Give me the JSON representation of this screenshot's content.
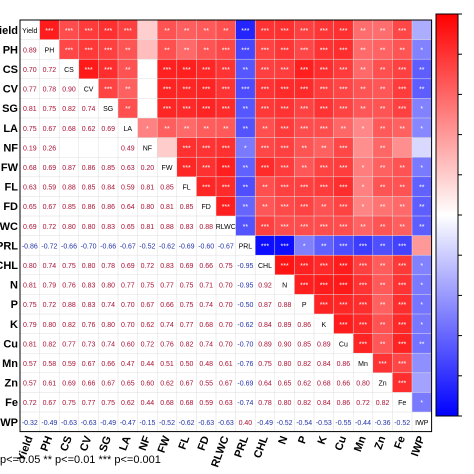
{
  "chart_data": {
    "type": "heatmap",
    "variables": [
      "Yield",
      "PH",
      "CS",
      "CV",
      "SG",
      "LA",
      "NF",
      "FW",
      "FL",
      "FD",
      "RLWC",
      "PRL",
      "CHL",
      "N",
      "P",
      "K",
      "Cu",
      "Mn",
      "Zn",
      "Fe",
      "IWP"
    ],
    "row_labels": [
      "Yield",
      "PH",
      "CS",
      "CV",
      "SG",
      "LA",
      "NF",
      "FW",
      "FL",
      "FD",
      "RLWC",
      "PRL",
      "CHL",
      "N",
      "P",
      "K",
      "Cu",
      "Mn",
      "Zn",
      "Fe",
      "IWP"
    ],
    "diagonal_labels": [
      "Yield",
      "PH",
      "CS",
      "CV",
      "SG",
      "LA",
      "NF",
      "FW",
      "FL",
      "FD",
      "RLWC",
      "PRL",
      "CHL",
      "N",
      "P",
      "K",
      "Cu",
      "Mn",
      "Zn",
      "Fe",
      "IWP"
    ],
    "lower_triangle": [
      [],
      [
        "0.89"
      ],
      [
        "0.70",
        "0.72"
      ],
      [
        "0.77",
        "0.78",
        "0.90"
      ],
      [
        "0.81",
        "0.75",
        "0.82",
        "0.74"
      ],
      [
        "0.75",
        "0.67",
        "0.68",
        "0.62",
        "0.69"
      ],
      [
        "0.19",
        "0.26",
        "",
        "",
        "",
        "0.49"
      ],
      [
        "0.68",
        "0.69",
        "0.87",
        "0.86",
        "0.85",
        "0.63",
        "0.20"
      ],
      [
        "0.63",
        "0.59",
        "0.88",
        "0.85",
        "0.84",
        "0.59",
        "0.81",
        "0.85"
      ],
      [
        "0.65",
        "0.67",
        "0.85",
        "0.86",
        "0.86",
        "0.64",
        "0.80",
        "0.81",
        "0.85"
      ],
      [
        "0.69",
        "0.72",
        "0.80",
        "0.80",
        "0.83",
        "0.65",
        "0.81",
        "0.88",
        "0.83",
        "0.88"
      ],
      [
        "-0.86",
        "-0.72",
        "-0.66",
        "-0.70",
        "-0.66",
        "-0.67",
        "-0.52",
        "-0.62",
        "-0.69",
        "-0.60",
        "-0.67"
      ],
      [
        "0.80",
        "0.74",
        "0.75",
        "0.80",
        "0.78",
        "0.69",
        "0.72",
        "0.83",
        "0.69",
        "0.66",
        "0.75",
        "-0.95"
      ],
      [
        "0.81",
        "0.79",
        "0.76",
        "0.83",
        "0.80",
        "0.77",
        "0.75",
        "0.77",
        "0.75",
        "0.71",
        "0.70",
        "-0.95",
        "0.92"
      ],
      [
        "0.75",
        "0.72",
        "0.88",
        "0.83",
        "0.74",
        "0.70",
        "0.67",
        "0.66",
        "0.75",
        "0.74",
        "0.70",
        "-0.50",
        "0.87",
        "0.88"
      ],
      [
        "0.79",
        "0.80",
        "0.82",
        "0.76",
        "0.80",
        "0.70",
        "0.62",
        "0.74",
        "0.77",
        "0.68",
        "0.70",
        "-0.62",
        "0.84",
        "0.89",
        "0.86"
      ],
      [
        "0.81",
        "0.82",
        "0.77",
        "0.73",
        "0.74",
        "0.60",
        "0.72",
        "0.76",
        "0.82",
        "0.74",
        "0.70",
        "-0.70",
        "0.89",
        "0.90",
        "0.85",
        "0.89"
      ],
      [
        "0.57",
        "0.58",
        "0.59",
        "0.67",
        "0.66",
        "0.47",
        "0.44",
        "0.51",
        "0.50",
        "0.48",
        "0.61",
        "-0.76",
        "0.75",
        "0.80",
        "0.82",
        "0.84",
        "0.86"
      ],
      [
        "0.57",
        "0.61",
        "0.69",
        "0.66",
        "0.67",
        "0.65",
        "0.60",
        "0.62",
        "0.67",
        "0.55",
        "0.67",
        "-0.69",
        "0.64",
        "0.65",
        "0.62",
        "0.68",
        "0.66",
        "0.80"
      ],
      [
        "0.72",
        "0.67",
        "0.75",
        "0.77",
        "0.75",
        "0.62",
        "0.44",
        "0.68",
        "0.68",
        "0.59",
        "0.63",
        "-0.74",
        "0.78",
        "0.80",
        "0.82",
        "0.84",
        "0.86",
        "0.72",
        "0.82"
      ],
      [
        "-0.32",
        "-0.49",
        "-0.63",
        "-0.63",
        "-0.49",
        "-0.47",
        "-0.15",
        "-0.52",
        "-0.62",
        "-0.63",
        "-0.63",
        "0.40",
        "-0.49",
        "-0.52",
        "-0.54",
        "-0.53",
        "-0.55",
        "-0.44",
        "-0.36",
        "-0.52"
      ]
    ],
    "upper_triangle_symbols": {
      "NF_row": [
        "",
        "",
        "",
        "",
        "",
        "**"
      ],
      "PH_NF": "*"
    },
    "significance_note": "p<=0.05  ** p<=0.01  *** p<=0.001",
    "color_scale": {
      "low": "#0000ff",
      "mid": "#ffffff",
      "high": "#ff0000",
      "range": [
        -1,
        1
      ]
    },
    "grid": true,
    "legend": "right"
  }
}
